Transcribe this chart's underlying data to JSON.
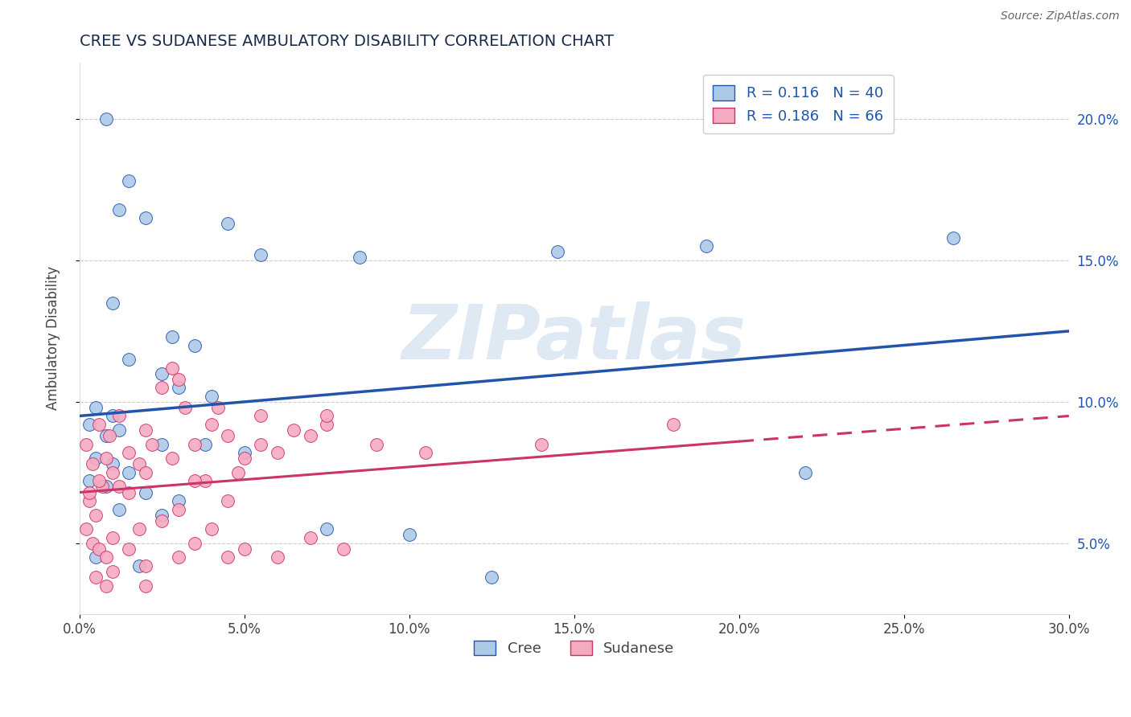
{
  "title": "CREE VS SUDANESE AMBULATORY DISABILITY CORRELATION CHART",
  "source": "Source: ZipAtlas.com",
  "xlabel": "",
  "ylabel": "Ambulatory Disability",
  "watermark": "ZIPatlas",
  "xmin": 0.0,
  "xmax": 30.0,
  "ymin": 2.5,
  "ymax": 22.0,
  "yticks": [
    5.0,
    10.0,
    15.0,
    20.0
  ],
  "xticks": [
    0.0,
    5.0,
    10.0,
    15.0,
    20.0,
    25.0,
    30.0
  ],
  "cree_R": 0.116,
  "cree_N": 40,
  "sudanese_R": 0.186,
  "sudanese_N": 66,
  "cree_color": "#adc9e8",
  "cree_line_color": "#2255aa",
  "sudanese_color": "#f5aac0",
  "sudanese_line_color": "#cc3366",
  "cree_line_x0": 0.0,
  "cree_line_y0": 9.5,
  "cree_line_x1": 30.0,
  "cree_line_y1": 12.5,
  "sud_line_x0": 0.0,
  "sud_line_y0": 6.8,
  "sud_line_x1_solid": 20.0,
  "sud_line_x1_dashed": 30.0,
  "sud_line_y1": 9.5,
  "cree_scatter": [
    [
      0.8,
      20.0
    ],
    [
      1.5,
      17.8
    ],
    [
      1.2,
      16.8
    ],
    [
      2.0,
      16.5
    ],
    [
      4.5,
      16.3
    ],
    [
      5.5,
      15.2
    ],
    [
      8.5,
      15.1
    ],
    [
      14.5,
      15.3
    ],
    [
      19.0,
      15.5
    ],
    [
      26.5,
      15.8
    ],
    [
      1.0,
      13.5
    ],
    [
      2.8,
      12.3
    ],
    [
      3.5,
      12.0
    ],
    [
      1.5,
      11.5
    ],
    [
      2.5,
      11.0
    ],
    [
      3.0,
      10.5
    ],
    [
      4.0,
      10.2
    ],
    [
      0.5,
      9.8
    ],
    [
      1.0,
      9.5
    ],
    [
      0.3,
      9.2
    ],
    [
      1.2,
      9.0
    ],
    [
      0.8,
      8.8
    ],
    [
      2.5,
      8.5
    ],
    [
      3.8,
      8.5
    ],
    [
      5.0,
      8.2
    ],
    [
      0.5,
      8.0
    ],
    [
      1.0,
      7.8
    ],
    [
      1.5,
      7.5
    ],
    [
      0.3,
      7.2
    ],
    [
      0.8,
      7.0
    ],
    [
      2.0,
      6.8
    ],
    [
      3.0,
      6.5
    ],
    [
      1.2,
      6.2
    ],
    [
      2.5,
      6.0
    ],
    [
      7.5,
      5.5
    ],
    [
      10.0,
      5.3
    ],
    [
      0.5,
      4.5
    ],
    [
      1.8,
      4.2
    ],
    [
      12.5,
      3.8
    ],
    [
      22.0,
      7.5
    ]
  ],
  "sudanese_scatter": [
    [
      0.2,
      8.5
    ],
    [
      0.4,
      7.8
    ],
    [
      0.6,
      9.2
    ],
    [
      0.8,
      8.0
    ],
    [
      1.0,
      7.5
    ],
    [
      0.3,
      6.5
    ],
    [
      0.5,
      6.0
    ],
    [
      0.7,
      7.0
    ],
    [
      0.9,
      8.8
    ],
    [
      1.2,
      9.5
    ],
    [
      1.5,
      8.2
    ],
    [
      1.8,
      7.8
    ],
    [
      2.0,
      9.0
    ],
    [
      2.2,
      8.5
    ],
    [
      2.5,
      10.5
    ],
    [
      2.8,
      11.2
    ],
    [
      3.0,
      10.8
    ],
    [
      3.2,
      9.8
    ],
    [
      3.5,
      8.5
    ],
    [
      3.8,
      7.2
    ],
    [
      4.0,
      9.2
    ],
    [
      4.2,
      9.8
    ],
    [
      4.5,
      8.8
    ],
    [
      4.8,
      7.5
    ],
    [
      5.0,
      8.0
    ],
    [
      5.5,
      9.5
    ],
    [
      6.0,
      8.2
    ],
    [
      6.5,
      9.0
    ],
    [
      7.0,
      8.8
    ],
    [
      7.5,
      9.2
    ],
    [
      0.2,
      5.5
    ],
    [
      0.4,
      5.0
    ],
    [
      0.6,
      4.8
    ],
    [
      0.8,
      4.5
    ],
    [
      1.0,
      5.2
    ],
    [
      1.5,
      4.8
    ],
    [
      1.8,
      5.5
    ],
    [
      2.0,
      4.2
    ],
    [
      2.5,
      5.8
    ],
    [
      3.0,
      6.2
    ],
    [
      3.5,
      5.0
    ],
    [
      4.0,
      5.5
    ],
    [
      4.5,
      4.5
    ],
    [
      5.0,
      4.8
    ],
    [
      6.0,
      4.5
    ],
    [
      7.0,
      5.2
    ],
    [
      8.0,
      4.8
    ],
    [
      9.0,
      8.5
    ],
    [
      0.3,
      6.8
    ],
    [
      0.6,
      7.2
    ],
    [
      1.2,
      7.0
    ],
    [
      1.5,
      6.8
    ],
    [
      2.0,
      7.5
    ],
    [
      2.8,
      8.0
    ],
    [
      3.5,
      7.2
    ],
    [
      4.5,
      6.5
    ],
    [
      5.5,
      8.5
    ],
    [
      7.5,
      9.5
    ],
    [
      10.5,
      8.2
    ],
    [
      14.0,
      8.5
    ],
    [
      0.5,
      3.8
    ],
    [
      0.8,
      3.5
    ],
    [
      1.0,
      4.0
    ],
    [
      2.0,
      3.5
    ],
    [
      3.0,
      4.5
    ],
    [
      18.0,
      9.2
    ]
  ],
  "background_color": "#ffffff",
  "grid_color": "#cccccc",
  "title_color": "#1a2a4a",
  "source_color": "#666666",
  "tick_color": "#2255aa"
}
